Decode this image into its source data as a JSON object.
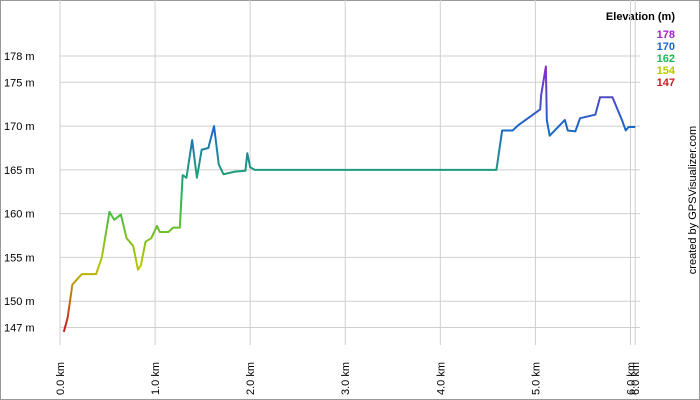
{
  "chart_data": {
    "type": "line",
    "legend_title": "Elevation (m)",
    "credit": "created by GPSVisualizer.com",
    "color_scale": [
      {
        "value": 178,
        "color": "#a020c8"
      },
      {
        "value": 170,
        "color": "#1a66c8"
      },
      {
        "value": 162,
        "color": "#22b855"
      },
      {
        "value": 154,
        "color": "#b8c800"
      },
      {
        "value": 147,
        "color": "#c81e1e"
      }
    ],
    "grid": true,
    "xlim": [
      0,
      6.1
    ],
    "ylim": [
      145,
      184.4
    ],
    "xticks": [
      {
        "value": 0,
        "label": "0.0 km"
      },
      {
        "value": 1,
        "label": "1.0 km"
      },
      {
        "value": 2,
        "label": "2.0 km"
      },
      {
        "value": 3,
        "label": "3.0 km"
      },
      {
        "value": 4,
        "label": "4.0 km"
      },
      {
        "value": 5,
        "label": "5.0 km"
      },
      {
        "value": 6,
        "label": "6.0 km"
      },
      {
        "value": 6.05,
        "label": "6.0 km"
      }
    ],
    "yticks": [
      {
        "value": 147,
        "label": "147 m"
      },
      {
        "value": 150,
        "label": "150 m"
      },
      {
        "value": 155,
        "label": "155 m"
      },
      {
        "value": 160,
        "label": "160 m"
      },
      {
        "value": 165,
        "label": "165 m"
      },
      {
        "value": 170,
        "label": "170 m"
      },
      {
        "value": 175,
        "label": "175 m"
      },
      {
        "value": 178,
        "label": "178 m"
      }
    ],
    "x": [
      0.04,
      0.08,
      0.13,
      0.23,
      0.38,
      0.44,
      0.52,
      0.57,
      0.64,
      0.7,
      0.77,
      0.82,
      0.85,
      0.9,
      0.96,
      1.02,
      1.05,
      1.14,
      1.19,
      1.26,
      1.29,
      1.33,
      1.39,
      1.44,
      1.49,
      1.56,
      1.62,
      1.67,
      1.72,
      1.84,
      1.95,
      1.97,
      2.0,
      2.05,
      4.59,
      4.65,
      4.76,
      4.82,
      5.05,
      5.06,
      5.11,
      5.12,
      5.15,
      5.31,
      5.34,
      5.42,
      5.47,
      5.63,
      5.68,
      5.81,
      5.91,
      5.95,
      5.98,
      6.05
    ],
    "values": [
      146.5,
      148.1,
      151.9,
      153.1,
      153.1,
      155.0,
      160.2,
      159.3,
      159.9,
      157.2,
      156.3,
      153.6,
      154.1,
      156.8,
      157.2,
      158.6,
      157.9,
      157.9,
      158.4,
      158.4,
      164.4,
      164.1,
      168.4,
      164.1,
      167.3,
      167.5,
      170.0,
      165.6,
      164.5,
      164.8,
      164.9,
      166.9,
      165.3,
      165.0,
      165.0,
      169.5,
      169.5,
      170.1,
      171.9,
      173.5,
      176.8,
      170.7,
      168.9,
      170.7,
      169.5,
      169.4,
      170.9,
      171.3,
      173.3,
      173.3,
      170.7,
      169.5,
      169.9,
      169.9
    ]
  }
}
